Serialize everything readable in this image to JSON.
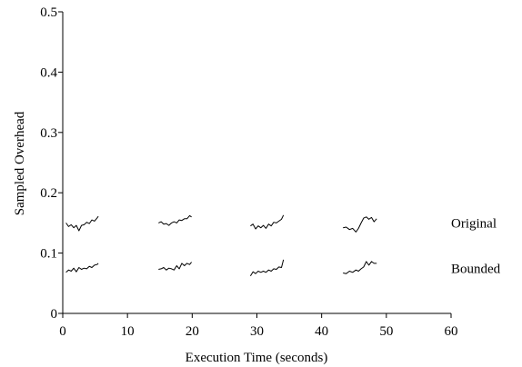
{
  "chart_data": {
    "type": "line",
    "title": "",
    "xlabel": "Execution Time (seconds)",
    "ylabel": "Sampled Overhead",
    "xlim": [
      0,
      60
    ],
    "ylim": [
      0,
      0.5
    ],
    "xticks": [
      0,
      10,
      20,
      30,
      40,
      50,
      60
    ],
    "xtick_labels": [
      "0",
      "10",
      "20",
      "30",
      "40",
      "50",
      "60"
    ],
    "yticks": [
      0,
      0.1,
      0.2,
      0.3,
      0.4,
      0.5
    ],
    "ytick_labels": [
      "0",
      "0.1",
      "0.2",
      "0.3",
      "0.4",
      "0.5"
    ],
    "grid": false,
    "legend": "none",
    "series": [
      {
        "name": "Original",
        "segments": [
          [
            [
              0.5,
              0.15
            ],
            [
              0.9,
              0.144
            ],
            [
              1.3,
              0.147
            ],
            [
              1.7,
              0.142
            ],
            [
              2.1,
              0.146
            ],
            [
              2.5,
              0.137
            ],
            [
              2.9,
              0.146
            ],
            [
              3.3,
              0.147
            ],
            [
              3.7,
              0.151
            ],
            [
              4.1,
              0.149
            ],
            [
              4.5,
              0.155
            ],
            [
              4.9,
              0.153
            ],
            [
              5.3,
              0.158
            ],
            [
              5.5,
              0.161
            ]
          ],
          [
            [
              14.8,
              0.15
            ],
            [
              15.2,
              0.152
            ],
            [
              15.6,
              0.148
            ],
            [
              16.0,
              0.149
            ],
            [
              16.4,
              0.146
            ],
            [
              16.8,
              0.15
            ],
            [
              17.2,
              0.152
            ],
            [
              17.6,
              0.15
            ],
            [
              18.0,
              0.155
            ],
            [
              18.4,
              0.154
            ],
            [
              18.8,
              0.157
            ],
            [
              19.2,
              0.157
            ],
            [
              19.6,
              0.162
            ],
            [
              19.9,
              0.16
            ]
          ],
          [
            [
              29.0,
              0.145
            ],
            [
              29.4,
              0.148
            ],
            [
              29.8,
              0.14
            ],
            [
              30.2,
              0.145
            ],
            [
              30.6,
              0.142
            ],
            [
              31.0,
              0.146
            ],
            [
              31.4,
              0.141
            ],
            [
              31.8,
              0.148
            ],
            [
              32.2,
              0.145
            ],
            [
              32.6,
              0.151
            ],
            [
              33.0,
              0.15
            ],
            [
              33.4,
              0.153
            ],
            [
              33.8,
              0.156
            ],
            [
              34.1,
              0.163
            ]
          ],
          [
            [
              43.3,
              0.142
            ],
            [
              43.8,
              0.143
            ],
            [
              44.3,
              0.139
            ],
            [
              44.8,
              0.141
            ],
            [
              45.3,
              0.135
            ],
            [
              45.7,
              0.141
            ],
            [
              46.1,
              0.15
            ],
            [
              46.5,
              0.158
            ],
            [
              46.9,
              0.16
            ],
            [
              47.3,
              0.156
            ],
            [
              47.7,
              0.159
            ],
            [
              48.1,
              0.152
            ],
            [
              48.5,
              0.157
            ]
          ]
        ]
      },
      {
        "name": "Bounded",
        "segments": [
          [
            [
              0.5,
              0.068
            ],
            [
              0.9,
              0.072
            ],
            [
              1.3,
              0.07
            ],
            [
              1.7,
              0.075
            ],
            [
              2.1,
              0.069
            ],
            [
              2.5,
              0.076
            ],
            [
              2.9,
              0.073
            ],
            [
              3.3,
              0.075
            ],
            [
              3.7,
              0.074
            ],
            [
              4.1,
              0.078
            ],
            [
              4.5,
              0.076
            ],
            [
              4.9,
              0.08
            ],
            [
              5.3,
              0.081
            ],
            [
              5.5,
              0.083
            ]
          ],
          [
            [
              14.8,
              0.073
            ],
            [
              15.2,
              0.074
            ],
            [
              15.6,
              0.076
            ],
            [
              16.0,
              0.072
            ],
            [
              16.4,
              0.075
            ],
            [
              16.8,
              0.074
            ],
            [
              17.2,
              0.072
            ],
            [
              17.6,
              0.079
            ],
            [
              18.0,
              0.074
            ],
            [
              18.4,
              0.083
            ],
            [
              18.8,
              0.079
            ],
            [
              19.2,
              0.083
            ],
            [
              19.6,
              0.081
            ],
            [
              19.9,
              0.085
            ]
          ],
          [
            [
              29.0,
              0.062
            ],
            [
              29.4,
              0.069
            ],
            [
              29.8,
              0.066
            ],
            [
              30.2,
              0.07
            ],
            [
              30.6,
              0.068
            ],
            [
              31.0,
              0.07
            ],
            [
              31.4,
              0.068
            ],
            [
              31.8,
              0.072
            ],
            [
              32.2,
              0.07
            ],
            [
              32.6,
              0.074
            ],
            [
              33.0,
              0.073
            ],
            [
              33.4,
              0.077
            ],
            [
              33.8,
              0.076
            ],
            [
              34.1,
              0.089
            ]
          ],
          [
            [
              43.3,
              0.067
            ],
            [
              43.8,
              0.066
            ],
            [
              44.3,
              0.07
            ],
            [
              44.8,
              0.068
            ],
            [
              45.3,
              0.072
            ],
            [
              45.7,
              0.07
            ],
            [
              46.1,
              0.074
            ],
            [
              46.5,
              0.077
            ],
            [
              46.9,
              0.086
            ],
            [
              47.3,
              0.08
            ],
            [
              47.7,
              0.086
            ],
            [
              48.1,
              0.083
            ],
            [
              48.5,
              0.083
            ]
          ]
        ]
      }
    ]
  }
}
